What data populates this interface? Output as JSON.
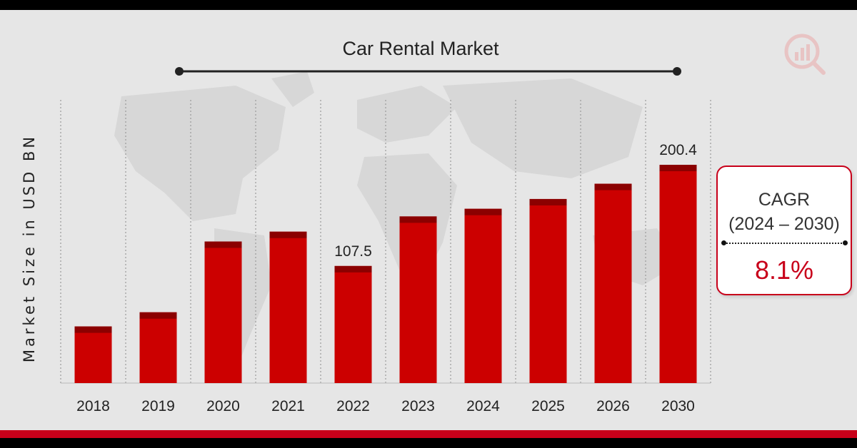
{
  "chart_data": {
    "type": "bar",
    "title": "Car Rental Market",
    "ylabel": "Market Size in USD BN",
    "xlabel": "",
    "categories": [
      "2018",
      "2019",
      "2020",
      "2021",
      "2022",
      "2023",
      "2024",
      "2025",
      "2026",
      "2030"
    ],
    "values": [
      52,
      65,
      130,
      139,
      107.5,
      153,
      160,
      169,
      183,
      200.4
    ],
    "data_labels": [
      {
        "category": "2022",
        "text": "107.5"
      },
      {
        "category": "2030",
        "text": "200.4"
      }
    ],
    "ylim": [
      0,
      260
    ],
    "grid": "vertical dotted",
    "legend": "none",
    "colors": {
      "bar": "#cc0000",
      "bar_cap": "#8b0000"
    }
  },
  "cagr": {
    "title": "CAGR",
    "period": "(2024 – 2030)",
    "value": "8.1%"
  },
  "colors": {
    "accent": "#c8001a"
  },
  "icons": {
    "logo": "market-research-logo-icon"
  }
}
